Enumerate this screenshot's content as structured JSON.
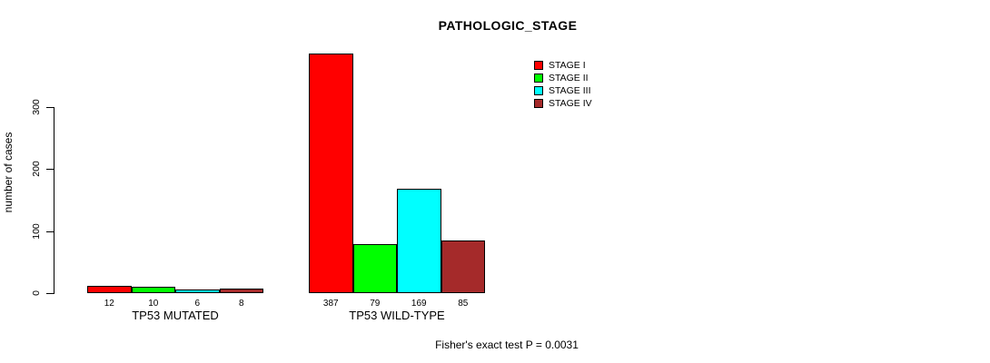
{
  "title": "PATHOLOGIC_STAGE",
  "footer": "Fisher's exact test P = 0.0031",
  "colors": {
    "stage_i": "#ff0000",
    "stage_ii": "#00ff00",
    "stage_iii": "#00ffff",
    "stage_iv": "#a52a2a",
    "axis": "#000000",
    "background": "#ffffff"
  },
  "chart_data": {
    "type": "bar",
    "title": "PATHOLOGIC_STAGE",
    "xlabel": "",
    "ylabel": "number of cases",
    "groups": [
      "TP53 MUTATED",
      "TP53 WILD-TYPE"
    ],
    "series": [
      {
        "name": "STAGE I",
        "color": "#ff0000",
        "values": [
          12,
          387
        ]
      },
      {
        "name": "STAGE II",
        "color": "#00ff00",
        "values": [
          10,
          79
        ]
      },
      {
        "name": "STAGE III",
        "color": "#00ffff",
        "values": [
          6,
          169
        ]
      },
      {
        "name": "STAGE IV",
        "color": "#a52a2a",
        "values": [
          8,
          85
        ]
      }
    ],
    "bar_labels": [
      [
        12,
        10,
        6,
        8
      ],
      [
        387,
        79,
        169,
        85
      ]
    ],
    "yticks": [
      0,
      100,
      200,
      300
    ],
    "ylim": [
      0,
      390
    ],
    "grid": false,
    "legend_position": "top-right",
    "legend_box": false,
    "annotation": "Fisher's exact test P = 0.0031"
  }
}
